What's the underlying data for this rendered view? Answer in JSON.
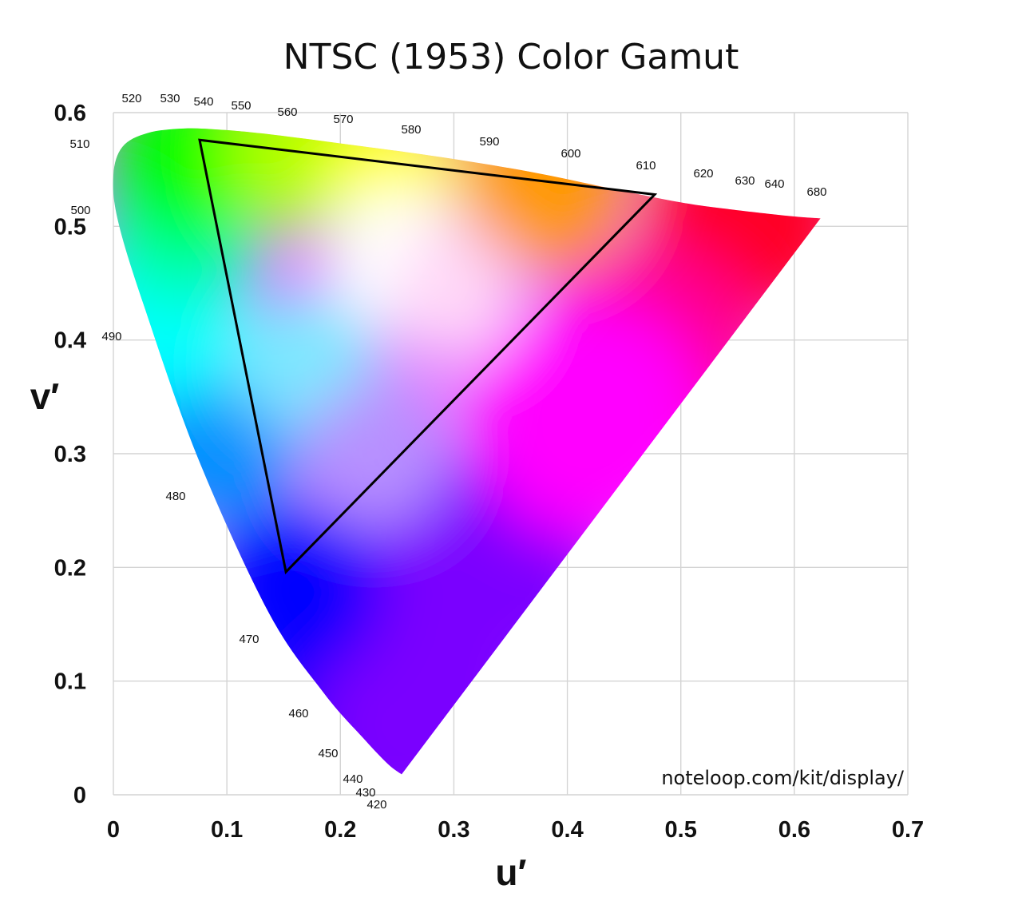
{
  "chart_data": {
    "type": "scatter",
    "title": "NTSC (1953) Color Gamut",
    "xlabel": "u′",
    "ylabel": "v′",
    "xlim": [
      0,
      0.7
    ],
    "ylim": [
      0,
      0.6
    ],
    "x_ticks": [
      "0",
      "0.1",
      "0.2",
      "0.3",
      "0.4",
      "0.5",
      "0.6",
      "0.7"
    ],
    "y_ticks": [
      "0",
      "0.1",
      "0.2",
      "0.3",
      "0.4",
      "0.5",
      "0.6"
    ],
    "grid": true,
    "spectral_locus": {
      "wavelength_labels": [
        "420",
        "430",
        "440",
        "450",
        "460",
        "470",
        "480",
        "490",
        "500",
        "510",
        "520",
        "530",
        "540",
        "550",
        "560",
        "570",
        "580",
        "590",
        "600",
        "610",
        "620",
        "630",
        "640",
        "680"
      ],
      "points": [
        {
          "nm": "680",
          "u": 0.623,
          "v": 0.507
        },
        {
          "nm": "640",
          "u": 0.596,
          "v": 0.509
        },
        {
          "nm": "620",
          "u": 0.543,
          "v": 0.515
        },
        {
          "nm": "610",
          "u": 0.5,
          "v": 0.521
        },
        {
          "nm": "600",
          "u": 0.44,
          "v": 0.533
        },
        {
          "nm": "590",
          "u": 0.367,
          "v": 0.548
        },
        {
          "nm": "580",
          "u": 0.288,
          "v": 0.561
        },
        {
          "nm": "570",
          "u": 0.207,
          "v": 0.572
        },
        {
          "nm": "560",
          "u": 0.137,
          "v": 0.581
        },
        {
          "nm": "550",
          "u": 0.094,
          "v": 0.585
        },
        {
          "nm": "540",
          "u": 0.062,
          "v": 0.586
        },
        {
          "nm": "530",
          "u": 0.03,
          "v": 0.582
        },
        {
          "nm": "520",
          "u": 0.008,
          "v": 0.57
        },
        {
          "nm": "510",
          "u": 0.0,
          "v": 0.545
        },
        {
          "nm": "500",
          "u": 0.004,
          "v": 0.505
        },
        {
          "nm": "490",
          "u": 0.027,
          "v": 0.43
        },
        {
          "nm": "480",
          "u": 0.075,
          "v": 0.295
        },
        {
          "nm": "470",
          "u": 0.137,
          "v": 0.16
        },
        {
          "nm": "460",
          "u": 0.185,
          "v": 0.09
        },
        {
          "nm": "450",
          "u": 0.22,
          "v": 0.05
        },
        {
          "nm": "440",
          "u": 0.242,
          "v": 0.027
        },
        {
          "nm": "420",
          "u": 0.254,
          "v": 0.018
        }
      ]
    },
    "gamut": {
      "name": "NTSC (1953)",
      "vertices": [
        {
          "u": 0.076,
          "v": 0.576
        },
        {
          "u": 0.477,
          "v": 0.528
        },
        {
          "u": 0.152,
          "v": 0.196
        }
      ]
    },
    "annotation": "noteloop.com/kit/display/"
  },
  "colors": {
    "red": "#ff0026",
    "yellow": "#ffff00",
    "green": "#00ff00",
    "cyan": "#00ffff",
    "blue": "#0000ff",
    "violet": "#7a00ff",
    "magenta": "#ff00ff",
    "gamut_outline": "#000000"
  }
}
